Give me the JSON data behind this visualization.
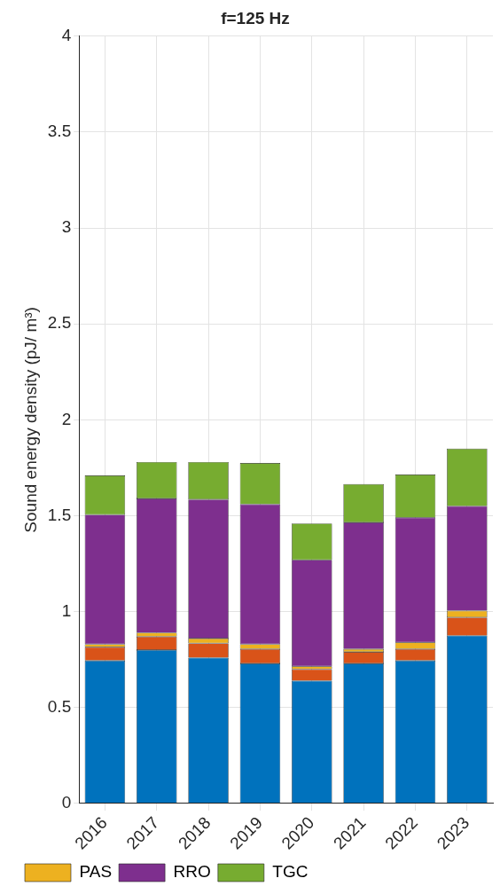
{
  "chart_data": {
    "type": "bar",
    "title": "f=125 Hz",
    "ylabel": "Sound energy density (pJ/ m³)",
    "categories": [
      "2016",
      "2017",
      "2018",
      "2019",
      "2020",
      "2021",
      "2022",
      "2023"
    ],
    "stacked": true,
    "ylim": [
      0,
      4
    ],
    "yticks": [
      0,
      0.5,
      1,
      1.5,
      2,
      2.5,
      3,
      3.5,
      4
    ],
    "grid": true,
    "legend": "bottom",
    "series": [
      {
        "color": "#0072bd",
        "values": [
          0.745,
          0.8,
          0.76,
          0.73,
          0.64,
          0.73,
          0.745,
          0.875
        ]
      },
      {
        "color": "#d95319",
        "values": [
          0.07,
          0.07,
          0.075,
          0.075,
          0.06,
          0.06,
          0.06,
          0.095
        ]
      },
      {
        "name": "PAS",
        "color": "#edb120",
        "values": [
          0.015,
          0.02,
          0.025,
          0.025,
          0.015,
          0.015,
          0.035,
          0.035
        ]
      },
      {
        "name": "RRO",
        "color": "#7e2f8e",
        "values": [
          0.675,
          0.7,
          0.725,
          0.73,
          0.555,
          0.66,
          0.65,
          0.545
        ]
      },
      {
        "name": "TGC",
        "color": "#77ac30",
        "values": [
          0.205,
          0.19,
          0.195,
          0.215,
          0.19,
          0.2,
          0.225,
          0.3
        ]
      }
    ]
  }
}
